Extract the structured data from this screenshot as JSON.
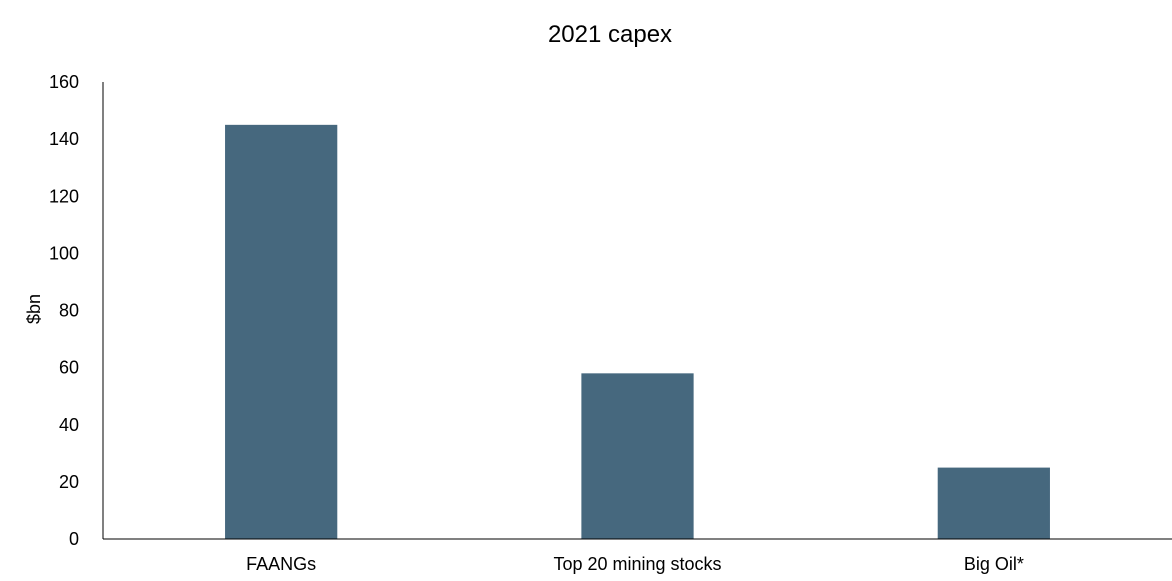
{
  "chart_data": {
    "type": "bar",
    "title": "2021 capex",
    "xlabel": "",
    "ylabel": "$bn",
    "categories": [
      "FAANGs",
      "Top 20 mining stocks",
      "Big Oil*"
    ],
    "values": [
      145,
      58,
      25
    ],
    "ylim": [
      0,
      160
    ],
    "yticks": [
      "0",
      "20",
      "40",
      "60",
      "80",
      "100",
      "120",
      "140",
      "160"
    ],
    "bar_color": "#46687e",
    "grid": false,
    "legend": "none"
  }
}
